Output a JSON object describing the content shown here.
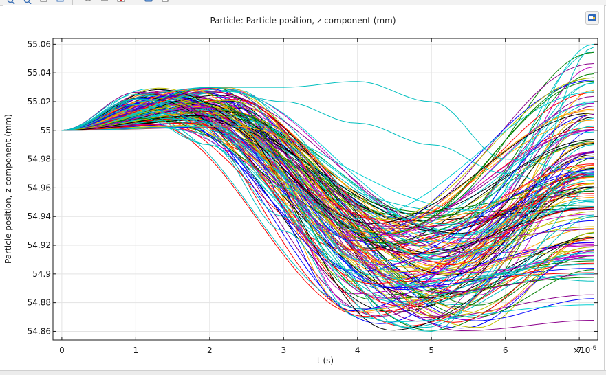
{
  "toolbar": {
    "icons": [
      "zoom-in-icon",
      "zoom-out-icon",
      "zoom-extents-icon",
      "zoom-box-icon",
      "grid-icon",
      "legend-icon",
      "image-export-icon",
      "camera-icon",
      "print-icon"
    ]
  },
  "plot": {
    "corner_button_icon": "plot-settings-icon"
  },
  "chart_data": {
    "type": "line",
    "title": "Particle: Particle position, z component (mm)",
    "xlabel": "t (s)",
    "ylabel": "Particle position, z component (mm)",
    "x_multiplier_label": "×10",
    "x_multiplier_exponent": "-6",
    "xlim": [
      -0.12,
      7.25
    ],
    "ylim": [
      54.854,
      55.064
    ],
    "x_ticks": [
      0,
      1,
      2,
      3,
      4,
      5,
      6,
      7
    ],
    "x_tick_labels": [
      "0",
      "1",
      "2",
      "3",
      "4",
      "5",
      "6",
      "7"
    ],
    "y_ticks": [
      54.86,
      54.88,
      54.9,
      54.92,
      54.94,
      54.96,
      54.98,
      55,
      55.02,
      55.04,
      55.06
    ],
    "y_tick_labels": [
      "54.86",
      "54.88",
      "54.9",
      "54.92",
      "54.94",
      "54.96",
      "54.98",
      "55",
      "55.02",
      "55.04",
      "55.06"
    ],
    "grid": true,
    "legend": "none",
    "trajectories": 150,
    "series_colors": [
      "#0000ff",
      "#008000",
      "#ff0000",
      "#00bfbf",
      "#bf00bf",
      "#bfbf00",
      "#000000",
      "#ffa500",
      "#00ced1",
      "#8b008b"
    ],
    "series_notes": "150 trajectories; each starts at t=0, z=55 mm, rises to ~55.00–55.03 mm near t≈1–2 µs, falls to minima between 54.86 and 54.95 mm near t≈4–5.5 µs, then rises again toward 54.89–55.06 mm at t≈7.2 µs",
    "series": [
      {
        "x": [
          0,
          1,
          2,
          3,
          4,
          5,
          6,
          7.2
        ],
        "y": [
          55.0,
          55.022,
          55.005,
          54.955,
          54.91,
          54.885,
          54.9,
          54.94
        ]
      },
      {
        "x": [
          0,
          1,
          2,
          3,
          4,
          5,
          6,
          7.2
        ],
        "y": [
          55.0,
          55.015,
          54.99,
          54.93,
          54.87,
          54.86,
          54.9,
          54.96
        ]
      },
      {
        "x": [
          0,
          1,
          2,
          3,
          4,
          5,
          6,
          7.2
        ],
        "y": [
          55.0,
          55.025,
          55.03,
          55.02,
          55.005,
          54.99,
          54.97,
          54.95
        ]
      },
      {
        "x": [
          0,
          1,
          2,
          3,
          4,
          5,
          6,
          7.2
        ],
        "y": [
          55.0,
          55.02,
          55.03,
          55.03,
          55.034,
          55.02,
          54.98,
          54.97
        ]
      },
      {
        "x": [
          0,
          1,
          2,
          3,
          4,
          5,
          6,
          7.2
        ],
        "y": [
          55.0,
          55.018,
          55.0,
          54.96,
          54.93,
          54.91,
          54.92,
          55.058
        ]
      },
      {
        "x": [
          0,
          1,
          2,
          3,
          4,
          5,
          6,
          7.2
        ],
        "y": [
          55.0,
          55.01,
          54.99,
          54.94,
          54.9,
          54.89,
          54.9,
          54.895
        ]
      }
    ]
  }
}
